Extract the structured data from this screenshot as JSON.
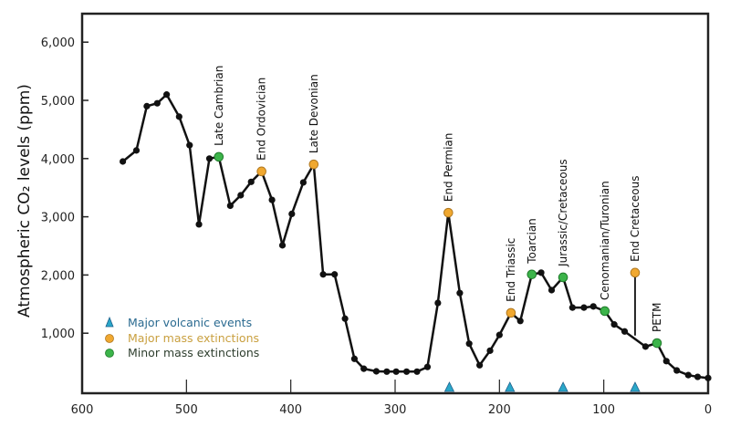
{
  "chart_data": {
    "type": "line",
    "title": "",
    "xlabel": "",
    "ylabel": "Atmospheric CO₂ levels (ppm)",
    "xlim": [
      600,
      0
    ],
    "ylim": [
      0,
      6500
    ],
    "x_reversed": true,
    "grid": false,
    "xticks": [
      600,
      500,
      400,
      300,
      200,
      100,
      0
    ],
    "xtick_labels": [
      "600",
      "500",
      "400",
      "300",
      "200",
      "100",
      "0"
    ],
    "yticks": [
      1000,
      2000,
      3000,
      4000,
      5000,
      6000
    ],
    "ytick_labels": [
      "1,000",
      "2,000",
      "3,000",
      "4,000",
      "5,000",
      "6,000"
    ],
    "series": [
      {
        "x": [
          561,
          548,
          538,
          528,
          519,
          507,
          497,
          488,
          478,
          469,
          458,
          448,
          438,
          428,
          418,
          408,
          399,
          388,
          378,
          369,
          358,
          348,
          339,
          330,
          318,
          308,
          299,
          289,
          279,
          269,
          259,
          249,
          238,
          229,
          219,
          209,
          200,
          189,
          180,
          169,
          160,
          150,
          139,
          130,
          119,
          110,
          99,
          90,
          80,
          60,
          49,
          40,
          30,
          19,
          10,
          0
        ],
        "y": [
          3950,
          4140,
          4900,
          4950,
          5100,
          4720,
          4230,
          2870,
          4000,
          4030,
          3190,
          3370,
          3600,
          3780,
          3290,
          2510,
          3050,
          3590,
          3900,
          2010,
          2010,
          1250,
          560,
          390,
          345,
          340,
          340,
          340,
          340,
          420,
          1520,
          3070,
          1690,
          820,
          450,
          700,
          970,
          1350,
          1210,
          2010,
          2040,
          1740,
          1960,
          1440,
          1440,
          1460,
          1380,
          1150,
          1030,
          770,
          830,
          520,
          360,
          280,
          250,
          230
        ]
      }
    ],
    "events": [
      {
        "label": "Late Cambrian",
        "age": 469,
        "co2": 4030,
        "type": "minor"
      },
      {
        "label": "End Ordovician",
        "age": 428,
        "co2": 3780,
        "type": "major"
      },
      {
        "label": "Late Devonian",
        "age": 378,
        "co2": 3900,
        "type": "major"
      },
      {
        "label": "End Permian",
        "age": 249,
        "co2": 3070,
        "type": "major"
      },
      {
        "label": "End Triassic",
        "age": 189,
        "co2": 1350,
        "type": "major"
      },
      {
        "label": "Toarcian",
        "age": 169,
        "co2": 2010,
        "type": "minor"
      },
      {
        "label": "Jurassic/Cretaceous",
        "age": 139,
        "co2": 1960,
        "type": "minor"
      },
      {
        "label": "Cenomanian/Turonian",
        "age": 99,
        "co2": 1380,
        "type": "minor"
      },
      {
        "label": "End Cretaceous",
        "age": 70,
        "co2": 2040,
        "type": "major",
        "stem_to": 960
      },
      {
        "label": "PETM",
        "age": 49,
        "co2": 830,
        "type": "minor"
      }
    ],
    "volcanic_events": [
      248,
      190,
      139,
      70
    ],
    "legend": {
      "placement": "bottom-left",
      "entries": [
        {
          "label": "Major volcanic events",
          "marker": "triangle"
        },
        {
          "label": "Major mass extinctions",
          "marker": "orange-circle"
        },
        {
          "label": "Minor mass extinctions",
          "marker": "green-circle"
        }
      ]
    },
    "colors": {
      "line": "#111111",
      "major": "#f0a830",
      "minor": "#3cb44a",
      "volcanic": "#2aa7c9",
      "legend_volcanic_text": "#2a6a90",
      "legend_major_text": "#c9a040",
      "legend_minor_text": "#2f3f2f"
    }
  }
}
